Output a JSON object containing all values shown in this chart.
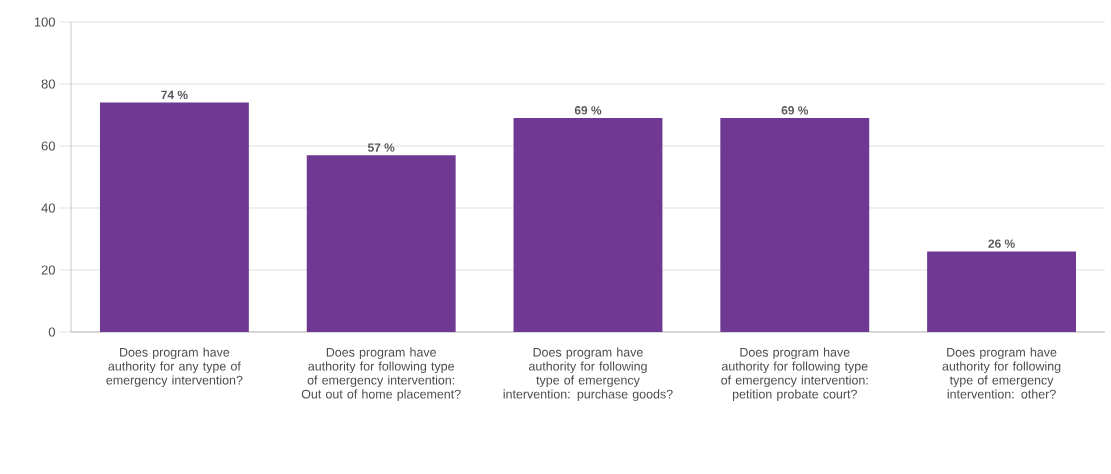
{
  "chart_data": {
    "type": "bar",
    "categories": [
      "Does program have authority for any type of emergency intervention?",
      "Does program have authority for following type of emergency intervention: Out out of home placement?",
      "Does program have authority for following type of emergency intervention: purchase goods?",
      "Does program have authority for following type of emergency intervention: petition probate court?",
      "Does program have authority for following type of emergency intervention: other?"
    ],
    "values": [
      74,
      57,
      69,
      69,
      26
    ],
    "value_labels": [
      "74 %",
      "57 %",
      "69 %",
      "69 %",
      "26 %"
    ],
    "color": "#6f3893",
    "ylim": [
      0,
      100
    ],
    "yticks": [
      0,
      20,
      40,
      60,
      80,
      100
    ],
    "grid": "y"
  }
}
